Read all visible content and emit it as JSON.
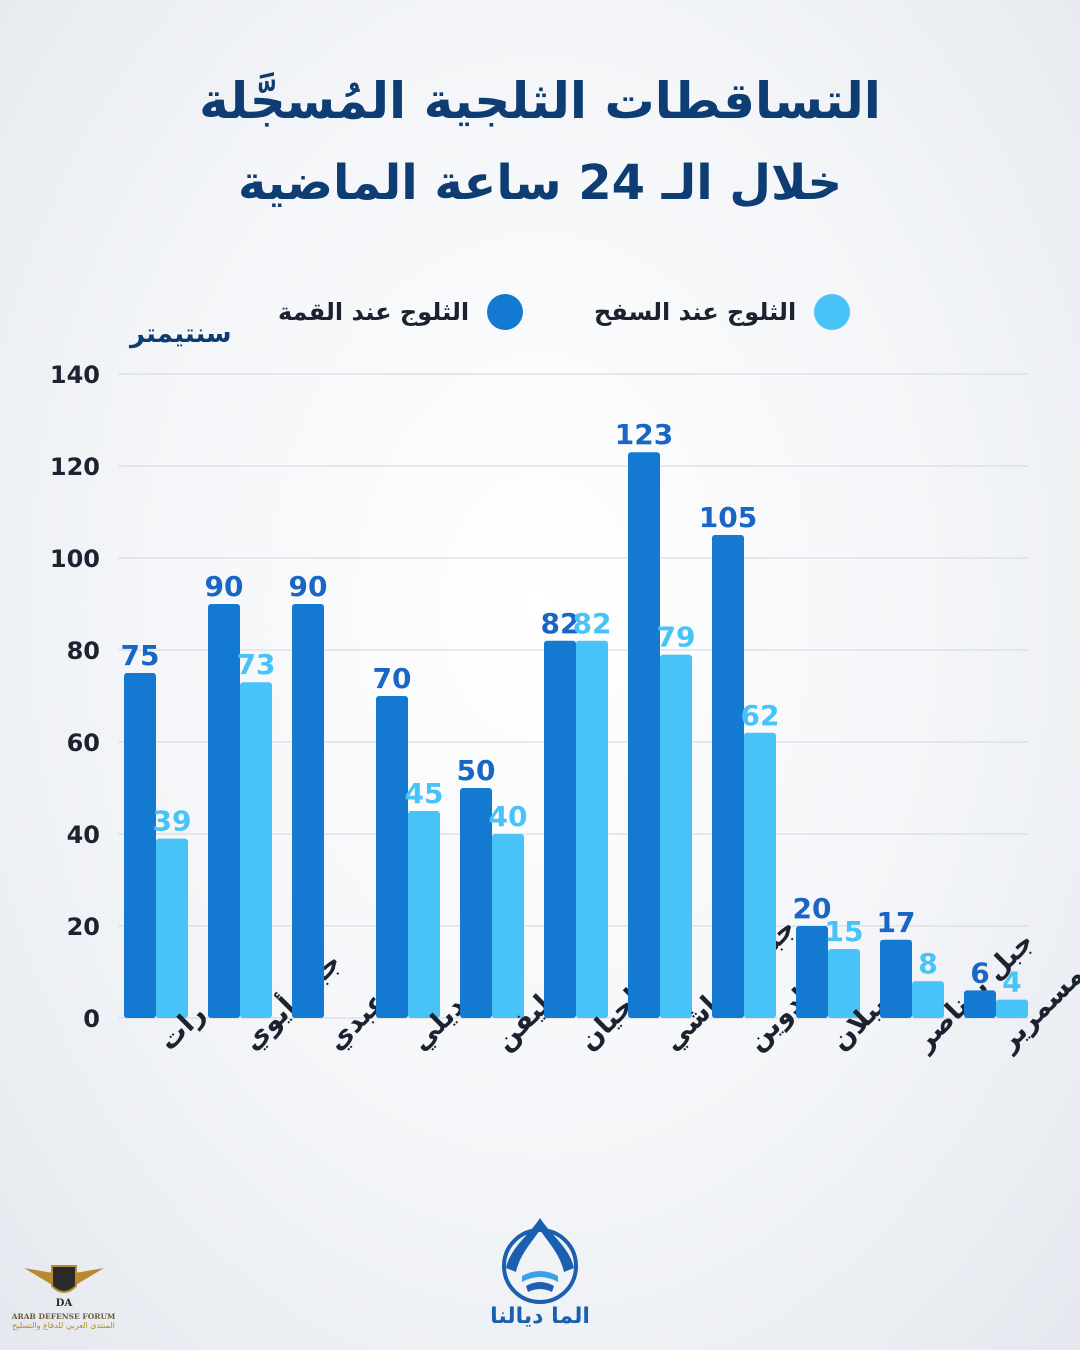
{
  "title": {
    "line1": "التساقطات الثلجية المُسجَّلة",
    "line2": "خلال الـ 24 ساعة الماضية"
  },
  "legend": {
    "peak": {
      "label": "الثلوج عند القمة",
      "color": "#1479d0"
    },
    "base": {
      "label": "الثلوج عند السفح",
      "color": "#48c3f8"
    }
  },
  "chart_data": {
    "type": "bar",
    "ylabel": "سنتيمتر",
    "ylim": [
      0,
      140
    ],
    "yticks": [
      0,
      20,
      40,
      60,
      80,
      100,
      120,
      140
    ],
    "grid": true,
    "legend_position": "top",
    "categories": [
      "جبل رات",
      "جبل أيوي",
      "أيت عبدي",
      "تيديلي",
      "مشليفن",
      "جبل الحيان",
      "جبل العياشي",
      "تيغادوين",
      "بويبلان",
      "جبل بوناصر",
      "مسمرير"
    ],
    "series": [
      {
        "name": "الثلوج عند القمة",
        "values": [
          75,
          90,
          90,
          70,
          50,
          82,
          123,
          105,
          20,
          17,
          6
        ]
      },
      {
        "name": "الثلوج عند السفح",
        "values": [
          39,
          73,
          null,
          45,
          40,
          82,
          79,
          62,
          15,
          8,
          4
        ]
      }
    ]
  },
  "colors": {
    "peak_label": "#1a66c4",
    "base_label": "#48c3f8",
    "axis_text": "#1c2230",
    "grid": "#d3d7dd"
  },
  "logo": {
    "text": "الما ديالنا"
  },
  "watermark": {
    "line1": "ARAB DEFENSE FORUM",
    "line2": "المنتدى العربي للدفاع والتسليح",
    "mark": "DA"
  }
}
